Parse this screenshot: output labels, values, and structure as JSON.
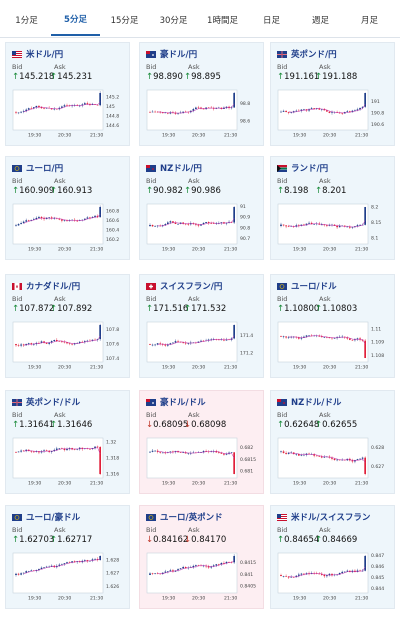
{
  "tabs": [
    {
      "label": "1分足",
      "active": false
    },
    {
      "label": "5分足",
      "active": true
    },
    {
      "label": "15分足",
      "active": false
    },
    {
      "label": "30分足",
      "active": false
    },
    {
      "label": "1時間足",
      "active": false
    },
    {
      "label": "日足",
      "active": false
    },
    {
      "label": "週足",
      "active": false
    },
    {
      "label": "月足",
      "active": false
    }
  ],
  "labels": {
    "bid": "Bid",
    "ask": "Ask"
  },
  "colors": {
    "up_candle": "#1f3e8a",
    "down_candle": "#e0203a",
    "ma_line": "#c02fb0",
    "up_arrow": "#1a8a3a",
    "down_arrow": "#c0392b"
  },
  "cards": [
    {
      "pair": "米ドル/円",
      "flag": "flag-us",
      "bid": "145.218",
      "ask": "145.231",
      "dir": "up",
      "pink": false,
      "chart_data": {
        "type": "candlestick",
        "x_ticks": [
          "19:30",
          "20:30",
          "21:30"
        ],
        "y_ticks": [
          "145.2",
          "145",
          "144.8",
          "144.6"
        ],
        "ylim": [
          144.5,
          145.35
        ],
        "trend": "up"
      }
    },
    {
      "pair": "豪ドル/円",
      "flag": "flag-au",
      "bid": "98.890",
      "ask": "98.895",
      "dir": "up",
      "pink": false,
      "chart_data": {
        "type": "candlestick",
        "x_ticks": [
          "19:30",
          "20:30",
          "21:30"
        ],
        "y_ticks": [
          "98.8",
          "98.6"
        ],
        "ylim": [
          98.5,
          98.95
        ],
        "trend": "up"
      }
    },
    {
      "pair": "英ポンド/円",
      "flag": "flag-uk",
      "bid": "191.161",
      "ask": "191.188",
      "dir": "up",
      "pink": false,
      "chart_data": {
        "type": "candlestick",
        "x_ticks": [
          "19:30",
          "20:30",
          "21:30"
        ],
        "y_ticks": [
          "191",
          "190.8",
          "190.6"
        ],
        "ylim": [
          190.5,
          191.2
        ],
        "trend": "up"
      }
    },
    {
      "pair": "ユーロ/円",
      "flag": "flag-eu",
      "bid": "160.909",
      "ask": "160.913",
      "dir": "up",
      "pink": false,
      "chart_data": {
        "type": "candlestick",
        "x_ticks": [
          "19:30",
          "20:30",
          "21:30"
        ],
        "y_ticks": [
          "160.8",
          "160.6",
          "160.4",
          "160.2"
        ],
        "ylim": [
          160.1,
          160.95
        ],
        "trend": "up"
      }
    },
    {
      "pair": "NZドル/円",
      "flag": "flag-nz",
      "bid": "90.982",
      "ask": "90.986",
      "dir": "up",
      "pink": false,
      "chart_data": {
        "type": "candlestick",
        "x_ticks": [
          "19:30",
          "20:30",
          "21:30"
        ],
        "y_ticks": [
          "91",
          "90.9",
          "90.8",
          "90.7"
        ],
        "ylim": [
          90.65,
          91.02
        ],
        "trend": "up"
      }
    },
    {
      "pair": "ランド/円",
      "flag": "flag-za",
      "bid": "8.198",
      "ask": "8.201",
      "dir": "up",
      "pink": false,
      "chart_data": {
        "type": "candlestick",
        "x_ticks": [
          "19:30",
          "20:30",
          "21:30"
        ],
        "y_ticks": [
          "8.2",
          "8.15",
          "8.1"
        ],
        "ylim": [
          8.08,
          8.21
        ],
        "trend": "up"
      }
    },
    {
      "pair": "カナダドル/円",
      "flag": "flag-ca",
      "bid": "107.872",
      "ask": "107.892",
      "dir": "up",
      "pink": false,
      "chart_data": {
        "type": "candlestick",
        "x_ticks": [
          "19:30",
          "20:30",
          "21:30"
        ],
        "y_ticks": [
          "107.8",
          "107.6",
          "107.4"
        ],
        "ylim": [
          107.35,
          107.9
        ],
        "trend": "up"
      }
    },
    {
      "pair": "スイスフラン/円",
      "flag": "flag-ch",
      "bid": "171.516",
      "ask": "171.532",
      "dir": "up",
      "pink": false,
      "chart_data": {
        "type": "candlestick",
        "x_ticks": [
          "19:30",
          "20:30",
          "21:30"
        ],
        "y_ticks": [
          "171.4",
          "171.2"
        ],
        "ylim": [
          171.1,
          171.55
        ],
        "trend": "up"
      }
    },
    {
      "pair": "ユーロ/ドル",
      "flag": "flag-eu",
      "bid": "1.10800",
      "ask": "1.10803",
      "dir": "up",
      "pink": false,
      "chart_data": {
        "type": "candlestick",
        "x_ticks": [
          "19:30",
          "20:30",
          "21:30"
        ],
        "y_ticks": [
          "1.11",
          "1.109",
          "1.108"
        ],
        "ylim": [
          1.1075,
          1.1105
        ],
        "trend": "down"
      }
    },
    {
      "pair": "英ポンド/ドル",
      "flag": "flag-uk",
      "bid": "1.31641",
      "ask": "1.31646",
      "dir": "up",
      "pink": false,
      "chart_data": {
        "type": "candlestick",
        "x_ticks": [
          "19:30",
          "20:30",
          "21:30"
        ],
        "y_ticks": [
          "1.32",
          "1.318",
          "1.316"
        ],
        "ylim": [
          1.3155,
          1.3205
        ],
        "trend": "down"
      }
    },
    {
      "pair": "豪ドル/ドル",
      "flag": "flag-au",
      "bid": "0.68095",
      "ask": "0.68098",
      "dir": "down",
      "pink": true,
      "chart_data": {
        "type": "candlestick",
        "x_ticks": [
          "19:30",
          "20:30",
          "21:30"
        ],
        "y_ticks": [
          "0.682",
          "0.6815",
          "0.681"
        ],
        "ylim": [
          0.6807,
          0.6824
        ],
        "trend": "down"
      }
    },
    {
      "pair": "NZドル/ドル",
      "flag": "flag-nz",
      "bid": "0.62648",
      "ask": "0.62655",
      "dir": "up",
      "pink": false,
      "chart_data": {
        "type": "candlestick",
        "x_ticks": [
          "19:30",
          "20:30",
          "21:30"
        ],
        "y_ticks": [
          "0.628",
          "0.627"
        ],
        "ylim": [
          0.6264,
          0.6285
        ],
        "trend": "down"
      }
    },
    {
      "pair": "ユーロ/豪ドル",
      "flag": "flag-eu",
      "bid": "1.62703",
      "ask": "1.62717",
      "dir": "up",
      "pink": false,
      "chart_data": {
        "type": "candlestick",
        "x_ticks": [
          "19:30",
          "20:30",
          "21:30"
        ],
        "y_ticks": [
          "1.628",
          "1.627",
          "1.626"
        ],
        "ylim": [
          1.6255,
          1.6285
        ],
        "trend": "up"
      }
    },
    {
      "pair": "ユーロ/英ポンド",
      "flag": "flag-eu",
      "bid": "0.84162",
      "ask": "0.84170",
      "dir": "down",
      "pink": true,
      "chart_data": {
        "type": "candlestick",
        "x_ticks": [
          "19:30",
          "20:30",
          "21:30"
        ],
        "y_ticks": [
          "0.8415",
          "0.841",
          "0.8405"
        ],
        "ylim": [
          0.8402,
          0.8419
        ],
        "trend": "up"
      }
    },
    {
      "pair": "米ドル/スイスフラン",
      "flag": "flag-us",
      "bid": "0.84654",
      "ask": "0.84669",
      "dir": "up",
      "pink": false,
      "chart_data": {
        "type": "candlestick",
        "x_ticks": [
          "19:30",
          "20:30",
          "21:30"
        ],
        "y_ticks": [
          "0.847",
          "0.846",
          "0.845",
          "0.844"
        ],
        "ylim": [
          0.8436,
          0.8472
        ],
        "trend": "up"
      }
    }
  ]
}
